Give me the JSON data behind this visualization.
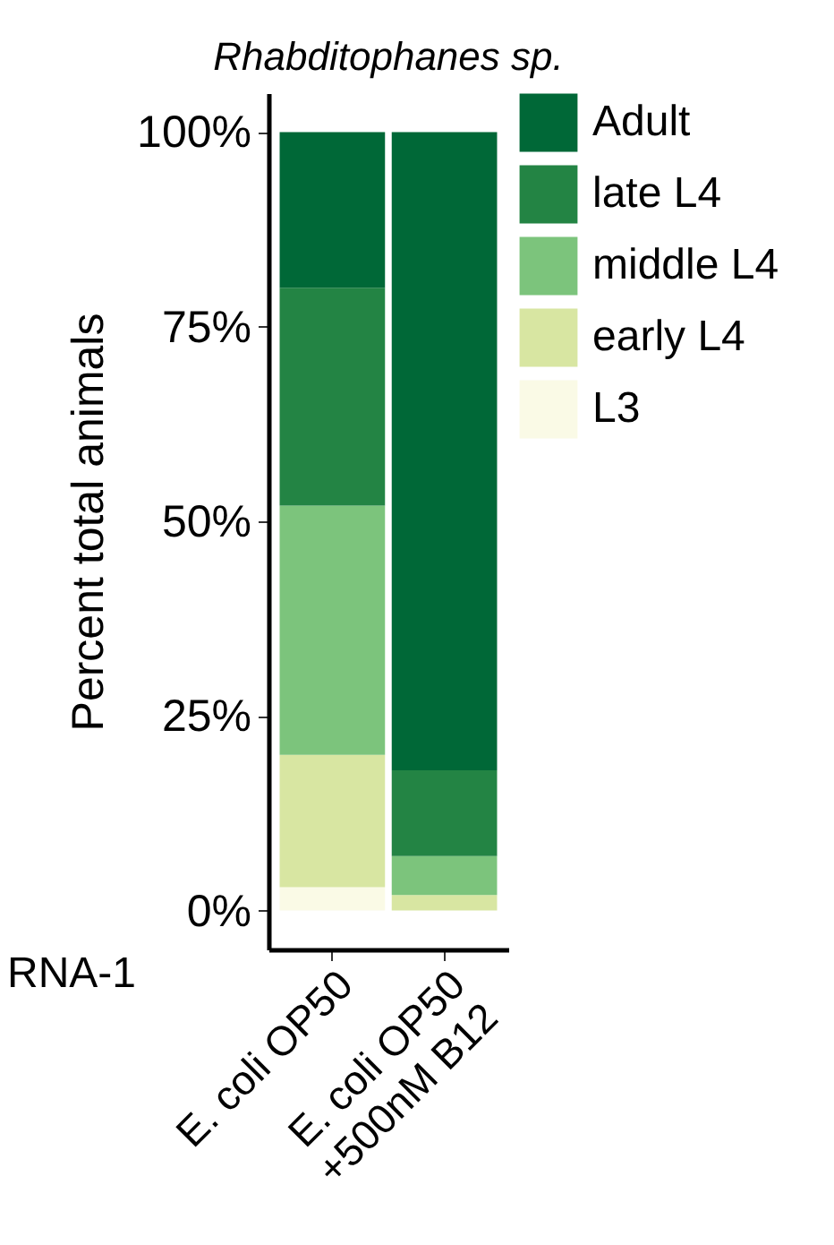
{
  "chart_data": {
    "type": "bar",
    "title": "Rhabditophanes sp.",
    "ylabel": "Percent total animals",
    "categories": [
      "E. coli OP50",
      "E. coli OP50\n+500nM B12"
    ],
    "stacked": true,
    "series": [
      {
        "name": "L3",
        "color": "#fafae6",
        "values": [
          3,
          0
        ]
      },
      {
        "name": "early L4",
        "color": "#d8e6a2",
        "values": [
          17,
          2
        ]
      },
      {
        "name": "middle L4",
        "color": "#7cc47c",
        "values": [
          32,
          5
        ]
      },
      {
        "name": "late L4",
        "color": "#238444",
        "values": [
          28,
          11
        ]
      },
      {
        "name": "Adult",
        "color": "#006837",
        "values": [
          20,
          82
        ]
      }
    ],
    "ylim": [
      -5,
      105
    ],
    "yticks": [
      {
        "value": 0,
        "label": "0%"
      },
      {
        "value": 25,
        "label": "25%"
      },
      {
        "value": 50,
        "label": "50%"
      },
      {
        "value": 75,
        "label": "75%"
      },
      {
        "value": 100,
        "label": "100%"
      }
    ],
    "grid": false,
    "legend": "top right",
    "annotations": [
      "RNA-1"
    ]
  }
}
